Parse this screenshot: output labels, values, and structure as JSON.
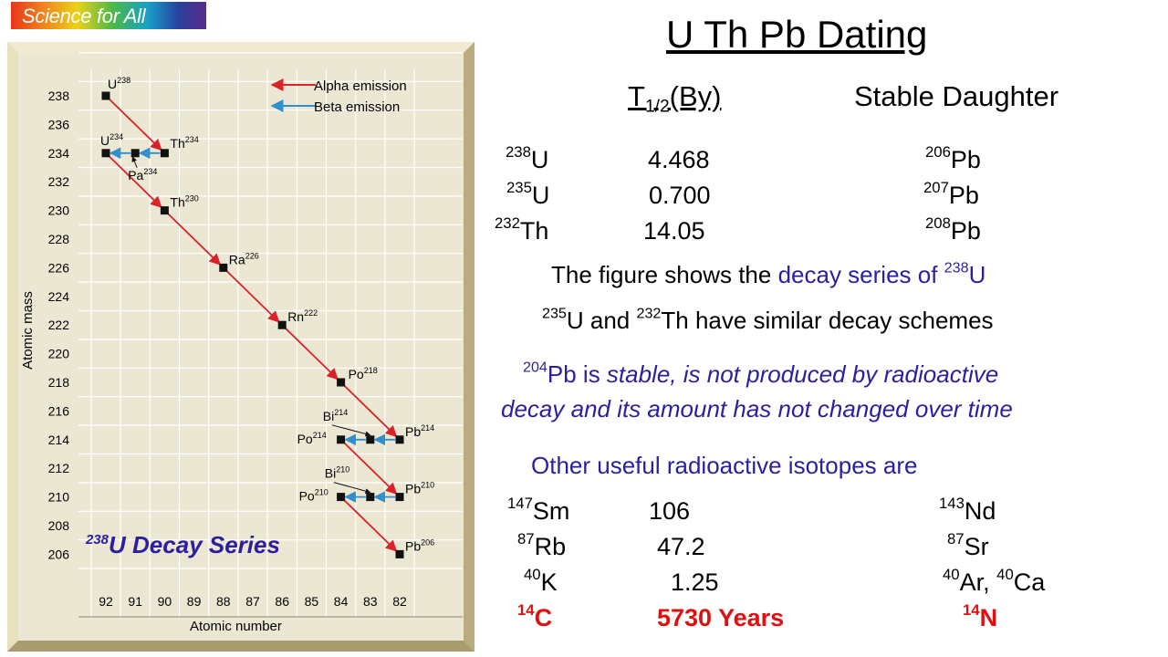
{
  "banner": {
    "label": "Science for All"
  },
  "title": "U Th Pb Dating",
  "headers": {
    "halflife": "T",
    "halflife_sub": "1/2",
    "halflife_unit": "(By)",
    "daughter": "Stable Daughter"
  },
  "isotopes": [
    {
      "mass": "238",
      "el": "U",
      "t": "4.468",
      "dmass": "206",
      "del": "Pb"
    },
    {
      "mass": "235",
      "el": "U",
      "t": "0.700",
      "dmass": "207",
      "del": "Pb"
    },
    {
      "mass": "232",
      "el": "Th",
      "t": "14.05",
      "dmass": "208",
      "del": "Pb"
    }
  ],
  "line1": {
    "a": "The figure shows the ",
    "b": "decay series of ",
    "mass": "238",
    "el": "U"
  },
  "line2": {
    "m1": "235",
    "e1": "U and ",
    "m2": "232",
    "e2": "Th have similar decay schemes"
  },
  "stable": {
    "mass": "204",
    "el": "Pb is ",
    "rest1": "stable, is not produced by radioactive",
    "rest2": "decay and its amount has not changed over time"
  },
  "other_title": "Other useful radioactive isotopes are",
  "others": [
    {
      "mass": "147",
      "el": "Sm",
      "t": "106",
      "d1mass": "143",
      "d1": "Nd",
      "d2mass": "",
      "d2": ""
    },
    {
      "mass": "87",
      "el": "Rb",
      "t": "47.2",
      "d1mass": "87",
      "d1": "Sr",
      "d2mass": "",
      "d2": ""
    },
    {
      "mass": "40",
      "el": "K",
      "t": "1.25",
      "d1mass": "40",
      "d1": "Ar, ",
      "d2mass": "40",
      "d2": "Ca"
    }
  ],
  "carbon": {
    "mass": "14",
    "el": "C",
    "t": "5730 Years",
    "dmass": "14",
    "del": "N"
  },
  "figure": {
    "ylabel": "Atomic mass",
    "xlabel": "Atomic number",
    "legend_alpha": "Alpha emission",
    "legend_beta": "Beta emission",
    "series_label_mass": "238",
    "series_label": "U Decay Series",
    "colors": {
      "alpha": "#d8232a",
      "beta": "#2f8fcf",
      "panel": "#ece7d3",
      "frame": "#d9cea2"
    },
    "x_ticks": [
      "92",
      "91",
      "90",
      "89",
      "88",
      "87",
      "86",
      "85",
      "84",
      "83",
      "82"
    ],
    "y_ticks": [
      "238",
      "236",
      "234",
      "232",
      "230",
      "228",
      "226",
      "224",
      "222",
      "220",
      "218",
      "216",
      "214",
      "212",
      "210",
      "208",
      "206"
    ],
    "nuclides": [
      {
        "el": "U",
        "mass": "238",
        "z": 92,
        "a": 238
      },
      {
        "el": "U",
        "mass": "234",
        "z": 92,
        "a": 234
      },
      {
        "el": "Th",
        "mass": "234",
        "z": 90,
        "a": 234
      },
      {
        "el": "Pa",
        "mass": "234",
        "z": 91,
        "a": 234
      },
      {
        "el": "Th",
        "mass": "230",
        "z": 90,
        "a": 230
      },
      {
        "el": "Ra",
        "mass": "226",
        "z": 88,
        "a": 226
      },
      {
        "el": "Rn",
        "mass": "222",
        "z": 86,
        "a": 222
      },
      {
        "el": "Po",
        "mass": "218",
        "z": 84,
        "a": 218
      },
      {
        "el": "Bi",
        "mass": "214",
        "z": 83,
        "a": 214
      },
      {
        "el": "Po",
        "mass": "214",
        "z": 84,
        "a": 214
      },
      {
        "el": "Pb",
        "mass": "214",
        "z": 82,
        "a": 214
      },
      {
        "el": "Bi",
        "mass": "210",
        "z": 83,
        "a": 210
      },
      {
        "el": "Po",
        "mass": "210",
        "z": 84,
        "a": 210
      },
      {
        "el": "Pb",
        "mass": "210",
        "z": 82,
        "a": 210
      },
      {
        "el": "Pb",
        "mass": "206",
        "z": 82,
        "a": 206
      }
    ],
    "alpha": [
      [
        92,
        238,
        90,
        234
      ],
      [
        92,
        234,
        90,
        230
      ],
      [
        90,
        230,
        88,
        226
      ],
      [
        88,
        226,
        86,
        222
      ],
      [
        86,
        222,
        84,
        218
      ],
      [
        84,
        218,
        82,
        214
      ],
      [
        84,
        214,
        82,
        210
      ],
      [
        84,
        210,
        82,
        206
      ]
    ],
    "beta": [
      [
        90,
        234,
        91,
        234
      ],
      [
        91,
        234,
        92,
        234
      ],
      [
        82,
        214,
        83,
        214
      ],
      [
        83,
        214,
        84,
        214
      ],
      [
        82,
        210,
        83,
        210
      ],
      [
        83,
        210,
        84,
        210
      ]
    ]
  }
}
